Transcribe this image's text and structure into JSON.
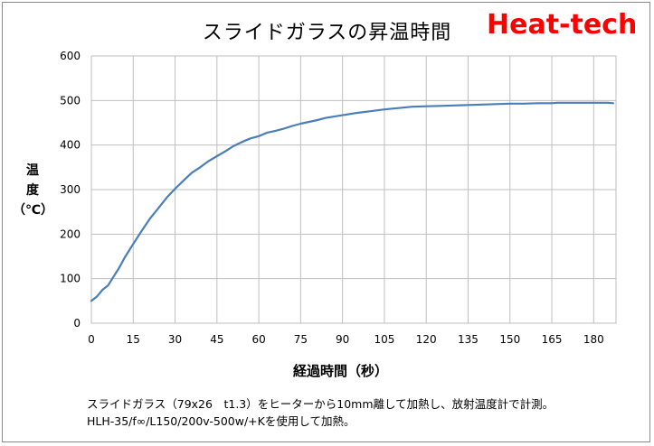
{
  "title": "スライドガラスの昇温時間",
  "logo_text": "Heat-tech",
  "note_lines": [
    "スライドガラス（79x26　t1.3）をヒーターから10mm離して加熱し、放射温度計で計測。",
    "HLH-35/f∞/L150/200v-500w/+Kを使用して加熱。"
  ],
  "colors": {
    "line": "#4a7ebb",
    "logo": "#ff0000",
    "grid": "#bfbfbf"
  },
  "chart_data": {
    "type": "line",
    "title": "スライドガラスの昇温時間",
    "xlabel": "経過時間（秒）",
    "ylabel": [
      "温",
      "度",
      "（℃）"
    ],
    "xlim": [
      0,
      188
    ],
    "ylim": [
      0,
      600
    ],
    "xticks": [
      0,
      15,
      30,
      45,
      60,
      75,
      90,
      105,
      120,
      135,
      150,
      165,
      180
    ],
    "yticks": [
      0,
      100,
      200,
      300,
      400,
      500,
      600
    ],
    "grid": true,
    "legend": "none",
    "series": [
      {
        "x": [
          0,
          2,
          4,
          6,
          8,
          10,
          12,
          15,
          18,
          21,
          24,
          27,
          30,
          33,
          36,
          39,
          42,
          45,
          48,
          51,
          54,
          57,
          60,
          63,
          66,
          69,
          72,
          75,
          78,
          81,
          84,
          87,
          90,
          95,
          100,
          105,
          110,
          115,
          120,
          125,
          130,
          135,
          140,
          145,
          150,
          155,
          160,
          163,
          165,
          167,
          170,
          175,
          180,
          185,
          187
        ],
        "y": [
          50,
          60,
          75,
          85,
          105,
          125,
          148,
          178,
          207,
          235,
          258,
          282,
          302,
          320,
          338,
          350,
          364,
          375,
          386,
          398,
          407,
          415,
          420,
          428,
          432,
          437,
          443,
          448,
          452,
          456,
          461,
          464,
          467,
          472,
          476,
          480,
          483,
          486,
          487,
          488,
          489,
          490,
          491,
          492,
          493,
          493,
          494,
          494,
          494,
          495,
          495,
          495,
          495,
          495,
          494
        ]
      }
    ]
  }
}
